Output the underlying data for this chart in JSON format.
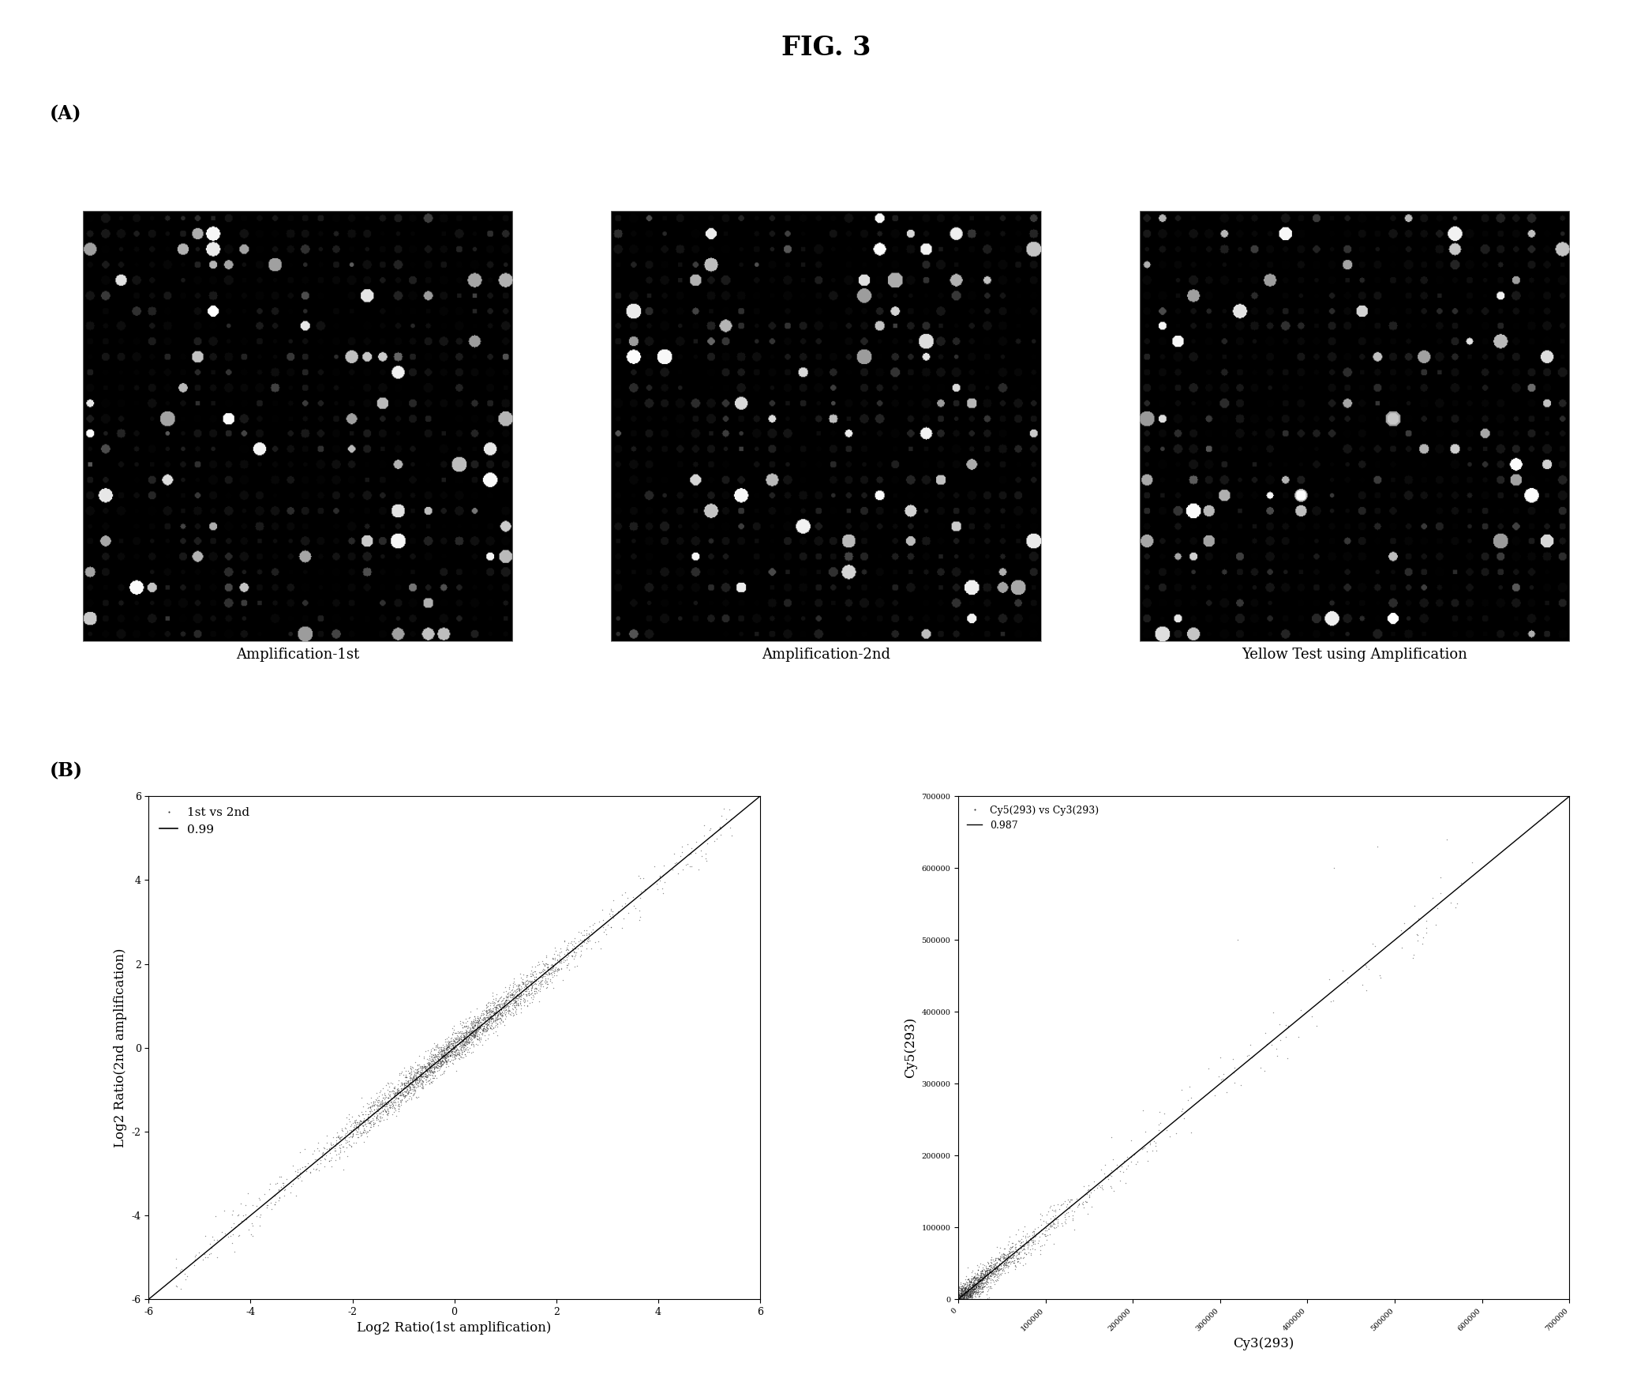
{
  "title": "FIG. 3",
  "panel_A_labels": [
    "Amplification-1st",
    "Amplification-2nd",
    "Yellow Test using Amplification"
  ],
  "panel_B_left": {
    "xlabel": "Log2 Ratio(1st amplification)",
    "ylabel": "Log2 Ratio(2nd amplification)",
    "xlim": [
      -6,
      6
    ],
    "ylim": [
      -6,
      6
    ],
    "xticks": [
      -6,
      -4,
      -2,
      0,
      2,
      4,
      6
    ],
    "yticks": [
      -6,
      -4,
      -2,
      0,
      2,
      4,
      6
    ],
    "xtick_labels": [
      "-6",
      "-4",
      "-2",
      "0",
      "2",
      "4",
      "6"
    ],
    "ytick_labels": [
      "-6",
      "-4",
      "-2",
      "0",
      "2",
      "4",
      "6"
    ],
    "legend_dot": "1st vs 2nd",
    "legend_line": "0.99",
    "dot_color": "#222222",
    "line_color": "#000000"
  },
  "panel_B_right": {
    "xlabel": "Cy3(293)",
    "ylabel": "Cy5(293)",
    "xlim": [
      0,
      700000
    ],
    "ylim": [
      0,
      700000
    ],
    "xticks": [
      0,
      100000,
      200000,
      300000,
      400000,
      500000,
      600000,
      700000
    ],
    "yticks": [
      0,
      100000,
      200000,
      300000,
      400000,
      500000,
      600000,
      700000
    ],
    "xtick_labels": [
      "0",
      "100000",
      "200000",
      "300000",
      "400000",
      "500000",
      "600000",
      "700000"
    ],
    "ytick_labels": [
      "0",
      "100000",
      "200000",
      "300000",
      "400000",
      "500000",
      "600000",
      "700000"
    ],
    "legend_dot": "Cy5(293) vs Cy3(293)",
    "legend_line": "0.987",
    "dot_color": "#222222",
    "line_color": "#000000"
  },
  "background_color": "#ffffff"
}
